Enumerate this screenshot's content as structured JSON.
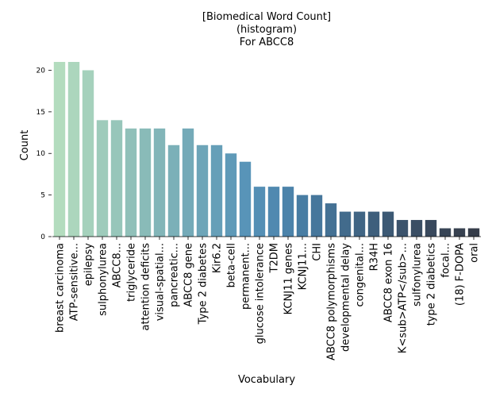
{
  "chart_data": {
    "type": "bar",
    "title": [
      "[Biomedical Word Count]",
      "(histogram)",
      "For ABCC8"
    ],
    "xlabel": "Vocabulary",
    "ylabel": "Count",
    "ylim": [
      0,
      21
    ],
    "yticks": [
      0,
      5,
      10,
      15,
      20
    ],
    "grid": false,
    "categories": [
      "breast carcinoma",
      "ATP-sensitive...",
      "epilepsy",
      "sulphonylurea",
      "ABCC8...",
      "triglyceride",
      "attention deficits",
      "visual-spatial...",
      "pancreatic...",
      "ABCC8 gene",
      "Type 2 diabetes",
      "Kir6.2",
      "beta-cell",
      "permanent...",
      "glucose intolerance",
      "T2DM",
      "KCNJ11 genes",
      "KCNJ11...",
      "CHI",
      "ABCC8 polymorphisms",
      "developmental delay",
      "congenital...",
      "R34H",
      "ABCC8 exon 16",
      "K<sub>ATP</sub>...",
      "sulfonylurea",
      "type 2 diabetics",
      "focal...",
      "(18) F-DOPA",
      "oral"
    ],
    "values": [
      21,
      21,
      20,
      14,
      14,
      13,
      13,
      13,
      11,
      13,
      11,
      11,
      10,
      9,
      6,
      6,
      6,
      5,
      5,
      4,
      3,
      3,
      3,
      3,
      2,
      2,
      2,
      1,
      1,
      1
    ],
    "colors": [
      "#b3dcbe",
      "#acd6bd",
      "#a5d1bc",
      "#9ecbbb",
      "#97c6ba",
      "#90c0b9",
      "#89bbb8",
      "#82b5b8",
      "#7bb0b8",
      "#74aab8",
      "#6da5b8",
      "#669fb8",
      "#5f9ab8",
      "#5894b8",
      "#548fb5",
      "#5089b0",
      "#4c83aa",
      "#487da3",
      "#46779c",
      "#447194",
      "#426b8c",
      "#406584",
      "#3e5f7c",
      "#3c5974",
      "#3b536c",
      "#3a4e64",
      "#39495d",
      "#384556",
      "#374150",
      "#363d4a"
    ]
  }
}
